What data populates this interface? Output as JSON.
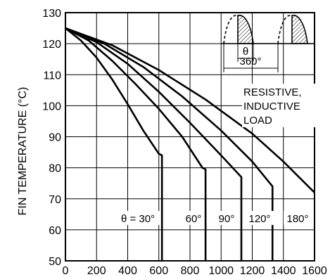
{
  "chart_data": {
    "type": "line",
    "title": "",
    "xlabel": "",
    "ylabel": "FIN TEMPERATURE (°C)",
    "xlim": [
      0,
      1600
    ],
    "ylim": [
      50,
      130
    ],
    "x_ticks": [
      "0",
      "200",
      "400",
      "600",
      "800",
      "1000",
      "1200",
      "1400",
      "1600"
    ],
    "y_ticks": [
      "50",
      "60",
      "70",
      "80",
      "90",
      "100",
      "110",
      "120",
      "130"
    ],
    "grid": true,
    "series": [
      {
        "name": "θ = 30°",
        "points": [
          [
            0,
            125
          ],
          [
            100,
            121
          ],
          [
            200,
            115.5
          ],
          [
            300,
            108.5
          ],
          [
            400,
            100.5
          ],
          [
            500,
            92
          ],
          [
            600,
            84.5
          ],
          [
            620,
            84
          ],
          [
            620,
            50
          ]
        ]
      },
      {
        "name": "60°",
        "points": [
          [
            0,
            125
          ],
          [
            150,
            121
          ],
          [
            300,
            114.5
          ],
          [
            450,
            107
          ],
          [
            600,
            99
          ],
          [
            750,
            90
          ],
          [
            880,
            80
          ],
          [
            900,
            79.5
          ],
          [
            900,
            50
          ]
        ]
      },
      {
        "name": "90°",
        "points": [
          [
            0,
            125
          ],
          [
            200,
            120.5
          ],
          [
            400,
            113.5
          ],
          [
            600,
            104.5
          ],
          [
            800,
            94.5
          ],
          [
            1000,
            84
          ],
          [
            1130,
            77
          ],
          [
            1130,
            50
          ]
        ]
      },
      {
        "name": "120°",
        "points": [
          [
            0,
            125
          ],
          [
            250,
            120
          ],
          [
            500,
            112.5
          ],
          [
            750,
            103
          ],
          [
            1000,
            92
          ],
          [
            1200,
            82
          ],
          [
            1330,
            74
          ],
          [
            1330,
            50
          ]
        ]
      },
      {
        "name": "180°",
        "points": [
          [
            0,
            125
          ],
          [
            300,
            119.5
          ],
          [
            600,
            111.5
          ],
          [
            900,
            102
          ],
          [
            1200,
            91
          ],
          [
            1400,
            82
          ],
          [
            1600,
            72
          ]
        ]
      }
    ],
    "annotations": {
      "angle_label": "θ",
      "period_label": "360°",
      "load_text": [
        "RESISTIVE,",
        "INDUCTIVE",
        "LOAD"
      ]
    }
  }
}
